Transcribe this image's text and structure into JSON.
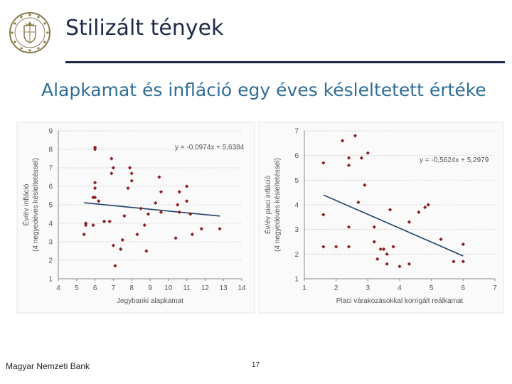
{
  "header": {
    "title": "Stilizált tények",
    "subtitle": "Alapkamat és infláció egy éves késleltetett értéke"
  },
  "footer": {
    "org": "Magyar Nemzeti Bank",
    "page": "17"
  },
  "colors": {
    "title": "#1f2a4a",
    "subtitle": "#2f6e96",
    "points": "#8b1a1a",
    "trend": "#1f3f66"
  },
  "chart_data": [
    {
      "type": "scatter",
      "xlabel": "Jegybanki alapkamat",
      "ylabel": "Év/év infláció (4 negyedéves késleltetéssel)",
      "ylabel_lines": [
        "Év/év infláció",
        "(4 negyedéves késleltetéssel)"
      ],
      "xlim": [
        4,
        14
      ],
      "ylim": [
        1,
        9
      ],
      "xticks": [
        "4",
        "5",
        "6",
        "7",
        "8",
        "9",
        "10",
        "11",
        "12",
        "13",
        "14"
      ],
      "yticks": [
        "1",
        "2",
        "3",
        "4",
        "5",
        "6",
        "7",
        "8",
        "9"
      ],
      "grid": true,
      "trendline": {
        "slope": -0.0974,
        "intercept": 5.6384,
        "equation": "y = -0.0974x + 5,6384"
      },
      "points": [
        [
          5.4,
          3.4
        ],
        [
          5.5,
          4.0
        ],
        [
          5.5,
          3.9
        ],
        [
          5.9,
          3.9
        ],
        [
          6.0,
          8.0
        ],
        [
          6.0,
          8.1
        ],
        [
          6.0,
          6.2
        ],
        [
          6.0,
          5.9
        ],
        [
          5.9,
          5.4
        ],
        [
          6.0,
          5.4
        ],
        [
          6.2,
          5.2
        ],
        [
          6.5,
          4.1
        ],
        [
          6.8,
          4.1
        ],
        [
          6.9,
          7.5
        ],
        [
          6.9,
          6.7
        ],
        [
          7.0,
          7.0
        ],
        [
          7.0,
          2.8
        ],
        [
          7.1,
          1.7
        ],
        [
          7.4,
          2.6
        ],
        [
          7.5,
          3.1
        ],
        [
          7.6,
          4.4
        ],
        [
          7.8,
          5.9
        ],
        [
          7.9,
          7.0
        ],
        [
          8.0,
          6.7
        ],
        [
          8.0,
          6.3
        ],
        [
          8.3,
          3.4
        ],
        [
          8.5,
          4.8
        ],
        [
          8.7,
          3.9
        ],
        [
          8.8,
          2.5
        ],
        [
          8.9,
          4.5
        ],
        [
          9.3,
          5.1
        ],
        [
          9.5,
          6.5
        ],
        [
          9.6,
          5.7
        ],
        [
          9.6,
          4.6
        ],
        [
          10.4,
          3.2
        ],
        [
          10.5,
          5.0
        ],
        [
          10.6,
          5.7
        ],
        [
          10.6,
          4.6
        ],
        [
          11.0,
          6.0
        ],
        [
          11.0,
          5.2
        ],
        [
          11.2,
          4.5
        ],
        [
          11.3,
          3.4
        ],
        [
          11.8,
          3.7
        ],
        [
          12.8,
          3.7
        ]
      ]
    },
    {
      "type": "scatter",
      "xlabel": "Piaci várakozásokkal korrigált reálkamat",
      "ylabel": "Év/év piaci infláció (4 negyedéves késleltetéssel)",
      "ylabel_lines": [
        "Év/év piaci infláció",
        "(4 negyedéves késleltetéssel)"
      ],
      "xlim": [
        1,
        7
      ],
      "ylim": [
        1,
        7
      ],
      "xticks": [
        "1",
        "2",
        "3",
        "4",
        "5",
        "6",
        "7"
      ],
      "yticks": [
        "1",
        "2",
        "3",
        "4",
        "5",
        "6",
        "7"
      ],
      "grid": true,
      "trendline": {
        "slope": -0.5624,
        "intercept": 5.2979,
        "equation": "y = -0,5624x + 5,2979"
      },
      "points": [
        [
          1.6,
          5.7
        ],
        [
          1.6,
          3.6
        ],
        [
          1.6,
          2.3
        ],
        [
          2.0,
          2.3
        ],
        [
          2.2,
          6.6
        ],
        [
          2.4,
          5.9
        ],
        [
          2.4,
          5.6
        ],
        [
          2.4,
          3.1
        ],
        [
          2.4,
          2.3
        ],
        [
          2.6,
          6.8
        ],
        [
          2.7,
          4.1
        ],
        [
          2.8,
          5.9
        ],
        [
          2.9,
          4.8
        ],
        [
          3.0,
          6.1
        ],
        [
          3.2,
          2.5
        ],
        [
          3.2,
          3.1
        ],
        [
          3.3,
          1.8
        ],
        [
          3.4,
          2.2
        ],
        [
          3.5,
          2.2
        ],
        [
          3.6,
          2.0
        ],
        [
          3.6,
          1.6
        ],
        [
          3.7,
          3.8
        ],
        [
          3.8,
          2.3
        ],
        [
          4.0,
          1.5
        ],
        [
          4.3,
          3.3
        ],
        [
          4.3,
          1.6
        ],
        [
          4.6,
          3.7
        ],
        [
          4.8,
          3.9
        ],
        [
          4.9,
          4.0
        ],
        [
          5.3,
          2.6
        ],
        [
          5.7,
          1.7
        ],
        [
          6.0,
          2.4
        ],
        [
          6.0,
          1.7
        ]
      ]
    }
  ]
}
